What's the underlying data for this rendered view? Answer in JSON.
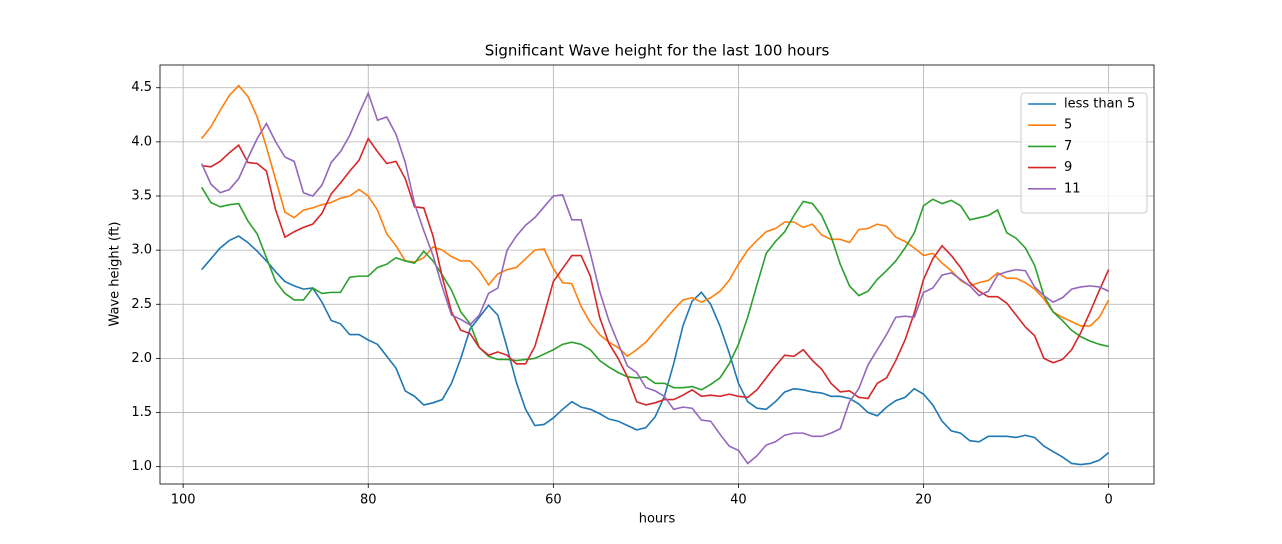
{
  "chart_data": {
    "type": "line",
    "title": "Significant Wave height for the last 100 hours",
    "xlabel": "hours",
    "ylabel": "Wave height (ft)",
    "x": [
      98,
      97,
      96,
      95,
      94,
      93,
      92,
      91,
      90,
      89,
      88,
      87,
      86,
      85,
      84,
      83,
      82,
      81,
      80,
      79,
      78,
      77,
      76,
      75,
      74,
      73,
      72,
      71,
      70,
      69,
      68,
      67,
      66,
      65,
      64,
      63,
      62,
      61,
      60,
      59,
      58,
      57,
      56,
      55,
      54,
      53,
      52,
      51,
      50,
      49,
      48,
      47,
      46,
      45,
      44,
      43,
      42,
      41,
      40,
      39,
      38,
      37,
      36,
      35,
      34,
      33,
      32,
      31,
      30,
      29,
      28,
      27,
      26,
      25,
      24,
      23,
      22,
      21,
      20,
      19,
      18,
      17,
      16,
      15,
      14,
      13,
      12,
      11,
      10,
      9,
      8,
      7,
      6,
      5,
      4,
      3,
      2,
      1,
      0
    ],
    "series": [
      {
        "name": "less than 5",
        "color": "#1f77b4",
        "values": [
          2.82,
          2.92,
          3.02,
          3.09,
          3.13,
          3.07,
          2.99,
          2.9,
          2.8,
          2.71,
          2.67,
          2.64,
          2.65,
          2.52,
          2.35,
          2.32,
          2.22,
          2.22,
          2.17,
          2.13,
          2.02,
          1.91,
          1.7,
          1.65,
          1.57,
          1.59,
          1.62,
          1.77,
          2.0,
          2.27,
          2.38,
          2.49,
          2.4,
          2.1,
          1.78,
          1.53,
          1.38,
          1.39,
          1.45,
          1.53,
          1.6,
          1.55,
          1.53,
          1.49,
          1.44,
          1.42,
          1.38,
          1.34,
          1.36,
          1.46,
          1.65,
          1.95,
          2.3,
          2.53,
          2.61,
          2.5,
          2.3,
          2.05,
          1.77,
          1.6,
          1.54,
          1.53,
          1.6,
          1.69,
          1.72,
          1.71,
          1.69,
          1.68,
          1.65,
          1.65,
          1.63,
          1.58,
          1.5,
          1.47,
          1.55,
          1.61,
          1.64,
          1.72,
          1.67,
          1.57,
          1.42,
          1.33,
          1.31,
          1.24,
          1.23,
          1.28,
          1.28,
          1.28,
          1.27,
          1.29,
          1.27,
          1.19,
          1.14,
          1.09,
          1.03,
          1.02,
          1.03,
          1.06,
          1.13
        ]
      },
      {
        "name": "5",
        "color": "#ff7f0e",
        "values": [
          4.03,
          4.14,
          4.29,
          4.43,
          4.52,
          4.42,
          4.23,
          3.95,
          3.65,
          3.35,
          3.3,
          3.37,
          3.39,
          3.42,
          3.44,
          3.48,
          3.5,
          3.56,
          3.5,
          3.37,
          3.15,
          3.04,
          2.9,
          2.89,
          2.93,
          3.03,
          3.0,
          2.94,
          2.9,
          2.9,
          2.81,
          2.68,
          2.78,
          2.82,
          2.84,
          2.92,
          3.0,
          3.01,
          2.83,
          2.7,
          2.69,
          2.48,
          2.33,
          2.22,
          2.15,
          2.1,
          2.02,
          2.08,
          2.15,
          2.25,
          2.35,
          2.45,
          2.54,
          2.56,
          2.52,
          2.56,
          2.62,
          2.72,
          2.87,
          3.0,
          3.09,
          3.17,
          3.2,
          3.26,
          3.26,
          3.21,
          3.24,
          3.14,
          3.1,
          3.1,
          3.07,
          3.19,
          3.2,
          3.24,
          3.22,
          3.12,
          3.08,
          3.02,
          2.95,
          2.97,
          2.88,
          2.81,
          2.72,
          2.67,
          2.7,
          2.72,
          2.79,
          2.74,
          2.74,
          2.7,
          2.64,
          2.55,
          2.43,
          2.38,
          2.34,
          2.3,
          2.3,
          2.38,
          2.54
        ]
      },
      {
        "name": "7",
        "color": "#2ca02c",
        "values": [
          3.58,
          3.44,
          3.4,
          3.42,
          3.43,
          3.27,
          3.15,
          2.93,
          2.71,
          2.6,
          2.54,
          2.54,
          2.65,
          2.6,
          2.61,
          2.61,
          2.75,
          2.76,
          2.76,
          2.84,
          2.87,
          2.93,
          2.9,
          2.88,
          2.99,
          2.9,
          2.77,
          2.63,
          2.43,
          2.32,
          2.1,
          2.02,
          1.99,
          1.99,
          1.98,
          1.99,
          2.0,
          2.04,
          2.08,
          2.13,
          2.15,
          2.13,
          2.08,
          1.98,
          1.92,
          1.87,
          1.83,
          1.82,
          1.83,
          1.77,
          1.77,
          1.73,
          1.73,
          1.74,
          1.71,
          1.76,
          1.82,
          1.95,
          2.13,
          2.38,
          2.68,
          2.97,
          3.08,
          3.17,
          3.32,
          3.45,
          3.43,
          3.32,
          3.13,
          2.87,
          2.67,
          2.58,
          2.62,
          2.73,
          2.81,
          2.9,
          3.02,
          3.16,
          3.41,
          3.47,
          3.43,
          3.46,
          3.41,
          3.28,
          3.3,
          3.32,
          3.37,
          3.16,
          3.11,
          3.02,
          2.86,
          2.58,
          2.43,
          2.35,
          2.26,
          2.2,
          2.16,
          2.13,
          2.11
        ]
      },
      {
        "name": "9",
        "color": "#d62728",
        "values": [
          3.78,
          3.77,
          3.82,
          3.9,
          3.97,
          3.81,
          3.8,
          3.73,
          3.37,
          3.12,
          3.17,
          3.21,
          3.24,
          3.34,
          3.52,
          3.62,
          3.73,
          3.83,
          4.03,
          3.91,
          3.8,
          3.82,
          3.66,
          3.4,
          3.39,
          3.13,
          2.75,
          2.43,
          2.26,
          2.23,
          2.1,
          2.03,
          2.06,
          2.03,
          1.95,
          1.95,
          2.11,
          2.4,
          2.71,
          2.83,
          2.95,
          2.95,
          2.76,
          2.38,
          2.14,
          2.0,
          1.83,
          1.6,
          1.57,
          1.59,
          1.62,
          1.62,
          1.66,
          1.71,
          1.65,
          1.66,
          1.65,
          1.67,
          1.65,
          1.64,
          1.71,
          1.82,
          1.93,
          2.03,
          2.02,
          2.08,
          1.98,
          1.9,
          1.77,
          1.69,
          1.7,
          1.64,
          1.63,
          1.77,
          1.82,
          1.98,
          2.17,
          2.42,
          2.73,
          2.92,
          3.04,
          2.95,
          2.84,
          2.7,
          2.62,
          2.57,
          2.57,
          2.51,
          2.4,
          2.29,
          2.21,
          2.0,
          1.96,
          1.99,
          2.08,
          2.24,
          2.43,
          2.63,
          2.82
        ]
      },
      {
        "name": "11",
        "color": "#9467bd",
        "values": [
          3.8,
          3.61,
          3.53,
          3.56,
          3.66,
          3.85,
          4.03,
          4.17,
          4.0,
          3.86,
          3.82,
          3.53,
          3.5,
          3.6,
          3.81,
          3.91,
          4.06,
          4.26,
          4.45,
          4.2,
          4.23,
          4.07,
          3.81,
          3.43,
          3.18,
          2.95,
          2.66,
          2.4,
          2.36,
          2.31,
          2.4,
          2.6,
          2.65,
          3.0,
          3.13,
          3.23,
          3.3,
          3.4,
          3.5,
          3.51,
          3.28,
          3.28,
          2.97,
          2.62,
          2.35,
          2.14,
          1.93,
          1.87,
          1.73,
          1.7,
          1.65,
          1.53,
          1.55,
          1.54,
          1.43,
          1.42,
          1.3,
          1.19,
          1.15,
          1.03,
          1.1,
          1.2,
          1.23,
          1.29,
          1.31,
          1.31,
          1.28,
          1.28,
          1.31,
          1.35,
          1.6,
          1.72,
          1.94,
          2.08,
          2.22,
          2.38,
          2.39,
          2.38,
          2.61,
          2.65,
          2.77,
          2.79,
          2.73,
          2.67,
          2.58,
          2.62,
          2.77,
          2.8,
          2.82,
          2.81,
          2.66,
          2.58,
          2.52,
          2.56,
          2.64,
          2.66,
          2.67,
          2.66,
          2.62
        ]
      }
    ],
    "xlim": [
      102.5,
      -4.9
    ],
    "ylim": [
      0.84,
      4.71
    ],
    "xticks": [
      100,
      80,
      60,
      40,
      20,
      0
    ],
    "yticks": [
      {
        "value": 1.0,
        "label": "1.0"
      },
      {
        "value": 1.5,
        "label": "1.5"
      },
      {
        "value": 2.0,
        "label": "2.0"
      },
      {
        "value": 2.5,
        "label": "2.5"
      },
      {
        "value": 3.0,
        "label": "3.0"
      },
      {
        "value": 3.5,
        "label": "3.5"
      },
      {
        "value": 4.0,
        "label": "4.0"
      },
      {
        "value": 4.5,
        "label": "4.5"
      }
    ],
    "grid": true,
    "legend": "upper right"
  }
}
